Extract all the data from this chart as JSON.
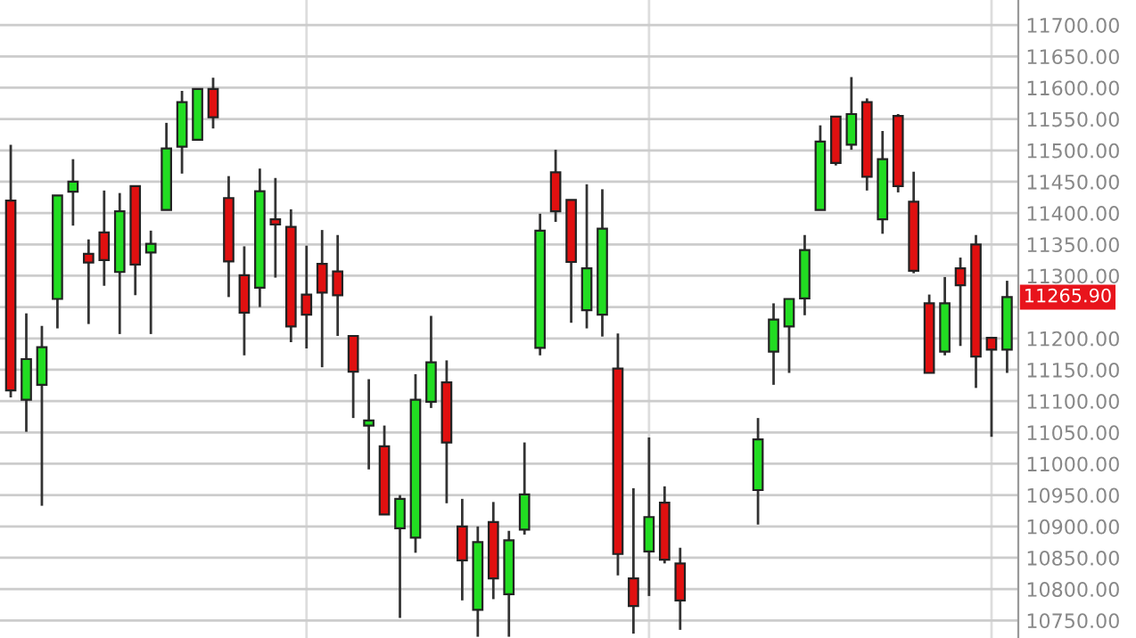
{
  "chart_data": {
    "type": "candlestick",
    "categories": [
      null,
      null,
      null,
      null,
      null,
      null,
      null,
      null,
      null,
      null,
      null,
      null,
      null,
      null,
      null,
      null,
      null,
      null,
      null,
      null,
      null,
      null,
      null,
      null,
      null,
      null,
      null,
      null,
      null,
      null,
      null,
      null,
      null,
      null,
      null,
      null,
      null,
      null,
      null,
      null,
      null,
      null,
      null,
      null,
      null,
      null,
      null,
      null,
      null,
      null,
      null,
      null,
      null,
      null,
      null,
      null,
      null,
      null,
      null,
      null,
      null,
      null,
      null,
      null,
      null
    ],
    "ohlc": [
      [
        11420,
        11509,
        11106,
        11117
      ],
      [
        11102,
        11240,
        11051,
        11167
      ],
      [
        11126,
        11220,
        10933,
        11186
      ],
      [
        11263,
        11428,
        11216,
        11428
      ],
      [
        11434,
        11486,
        11380,
        11450
      ],
      [
        11335,
        11358,
        11223,
        11321
      ],
      [
        11369,
        11436,
        11284,
        11325
      ],
      [
        11306,
        11432,
        11207,
        11403
      ],
      [
        11443,
        11443,
        11269,
        11318
      ],
      [
        11337,
        11372,
        11207,
        11351
      ],
      [
        11405,
        11544,
        11405,
        11503
      ],
      [
        11506,
        11595,
        11463,
        11577
      ],
      [
        11517,
        11598,
        11517,
        11598
      ],
      [
        11598,
        11616,
        11535,
        11553
      ],
      [
        11424,
        11459,
        11266,
        11323
      ],
      [
        11301,
        11347,
        11173,
        11241
      ],
      [
        11281,
        11471,
        11250,
        11435
      ],
      [
        11390,
        11456,
        11297,
        11382
      ],
      [
        11378,
        11406,
        11194,
        11219
      ],
      [
        11270,
        11348,
        11184,
        11238
      ],
      [
        11319,
        11373,
        11154,
        11273
      ],
      [
        11307,
        11365,
        11204,
        11269
      ],
      [
        11204,
        11204,
        11073,
        11147
      ],
      [
        11061,
        11135,
        10991,
        11069
      ],
      [
        11028,
        11061,
        10919,
        10919
      ],
      [
        10897,
        10950,
        10754,
        10944
      ],
      [
        10882,
        11143,
        10858,
        11102
      ],
      [
        11099,
        11236,
        11089,
        11162
      ],
      [
        11130,
        11165,
        10937,
        11034
      ],
      [
        10900,
        10944,
        10782,
        10846
      ],
      [
        10767,
        10900,
        10724,
        10875
      ],
      [
        10907,
        10939,
        10784,
        10817
      ],
      [
        10792,
        10893,
        10724,
        10878
      ],
      [
        10895,
        11034,
        10887,
        10951
      ],
      [
        11185,
        11399,
        11173,
        11372
      ],
      [
        11465,
        11501,
        11386,
        11403
      ],
      [
        11421,
        11421,
        11225,
        11322
      ],
      [
        11245,
        11446,
        11216,
        11312
      ],
      [
        11238,
        11438,
        11203,
        11375
      ],
      [
        11152,
        11208,
        10822,
        10856
      ],
      [
        10817,
        10961,
        10729,
        10773
      ],
      [
        10860,
        11042,
        10789,
        10915
      ],
      [
        10938,
        10964,
        10841,
        10847
      ],
      [
        10841,
        10866,
        10735,
        10782
      ],
      null,
      null,
      null,
      null,
      [
        10958,
        11073,
        10903,
        11039
      ],
      [
        11179,
        11256,
        11126,
        11230
      ],
      [
        11219,
        11263,
        11145,
        11263
      ],
      [
        11264,
        11365,
        11237,
        11341
      ],
      [
        11405,
        11540,
        11405,
        11514
      ],
      [
        11554,
        11554,
        11476,
        11480
      ],
      [
        11509,
        11617,
        11501,
        11558
      ],
      [
        11577,
        11583,
        11436,
        11458
      ],
      [
        11390,
        11531,
        11367,
        11486
      ],
      [
        11555,
        11558,
        11433,
        11443
      ],
      [
        11418,
        11466,
        11304,
        11308
      ],
      [
        11256,
        11270,
        11145,
        11145
      ],
      [
        11179,
        11298,
        11173,
        11256
      ],
      [
        11312,
        11329,
        11188,
        11285
      ],
      [
        11350,
        11365,
        11121,
        11171
      ],
      [
        11201,
        11201,
        11043,
        11182
      ],
      [
        11182,
        11292,
        11145,
        11265.9
      ]
    ],
    "ylim": [
      10722,
      11740
    ],
    "yticks": [
      {
        "value": 10750,
        "label": "10750.00"
      },
      {
        "value": 10800,
        "label": "10800.00"
      },
      {
        "value": 10850,
        "label": "10850.00"
      },
      {
        "value": 10900,
        "label": "10900.00"
      },
      {
        "value": 10950,
        "label": "10950.00"
      },
      {
        "value": 11000,
        "label": "11000.00"
      },
      {
        "value": 11050,
        "label": "11050.00"
      },
      {
        "value": 11100,
        "label": "11100.00"
      },
      {
        "value": 11150,
        "label": "11150.00"
      },
      {
        "value": 11200,
        "label": "11200.00"
      },
      {
        "value": 11250,
        "label": null
      },
      {
        "value": 11300,
        "label": "11300.00"
      },
      {
        "value": 11350,
        "label": "11350.00"
      },
      {
        "value": 11400,
        "label": "11400.00"
      },
      {
        "value": 11450,
        "label": "11450.00"
      },
      {
        "value": 11500,
        "label": "11500.00"
      },
      {
        "value": 11550,
        "label": "11550.00"
      },
      {
        "value": 11600,
        "label": "11600.00"
      },
      {
        "value": 11650,
        "label": "11650.00"
      },
      {
        "value": 11700,
        "label": "11700.00"
      }
    ],
    "annotations": [
      "11265.90"
    ],
    "grid": true,
    "tick_labels": "y"
  }
}
